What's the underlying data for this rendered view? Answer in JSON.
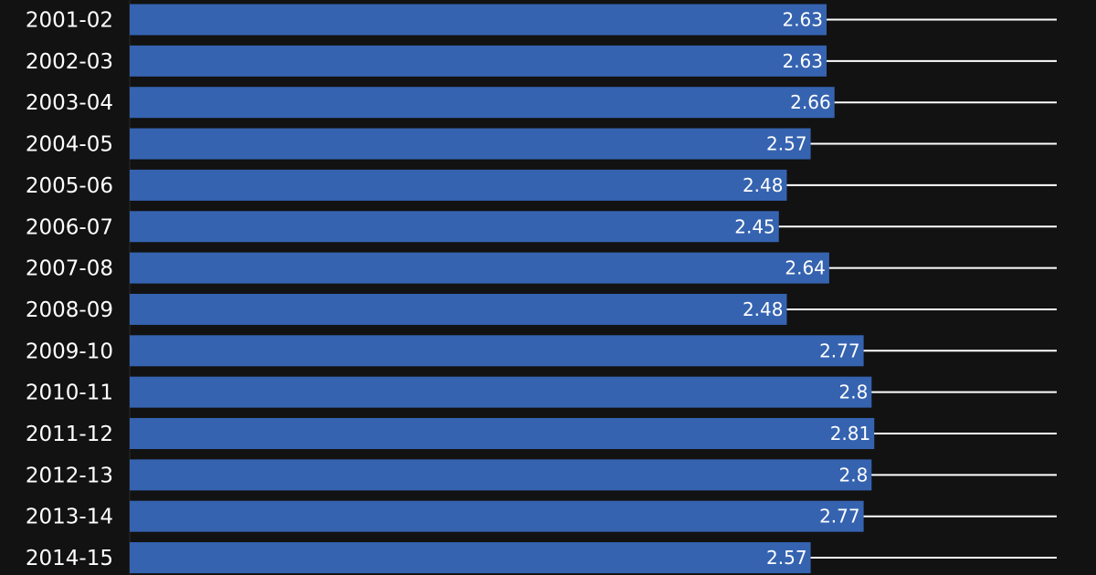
{
  "chart_data": {
    "type": "bar",
    "orientation": "horizontal",
    "categories": [
      "2001-02",
      "2002-03",
      "2003-04",
      "2004-05",
      "2005-06",
      "2006-07",
      "2007-08",
      "2008-09",
      "2009-10",
      "2010-11",
      "2011-12",
      "2012-13",
      "2013-14",
      "2014-15"
    ],
    "values": [
      2.63,
      2.63,
      2.66,
      2.57,
      2.48,
      2.45,
      2.64,
      2.48,
      2.77,
      2.8,
      2.81,
      2.8,
      2.77,
      2.57
    ],
    "value_labels": [
      "2.63",
      "2.63",
      "2.66",
      "2.57",
      "2.48",
      "2.45",
      "2.64",
      "2.48",
      "2.77",
      "2.8",
      "2.81",
      "2.8",
      "2.77",
      "2.57"
    ],
    "title": "",
    "xlabel": "",
    "ylabel": "",
    "xlim": [
      0,
      3.5
    ],
    "grid": "horizontal lines per category",
    "legend": "none",
    "colors": {
      "bar": "#3563b0",
      "background": "#121212",
      "text": "#ffffff",
      "grid": "#ffffff"
    }
  }
}
